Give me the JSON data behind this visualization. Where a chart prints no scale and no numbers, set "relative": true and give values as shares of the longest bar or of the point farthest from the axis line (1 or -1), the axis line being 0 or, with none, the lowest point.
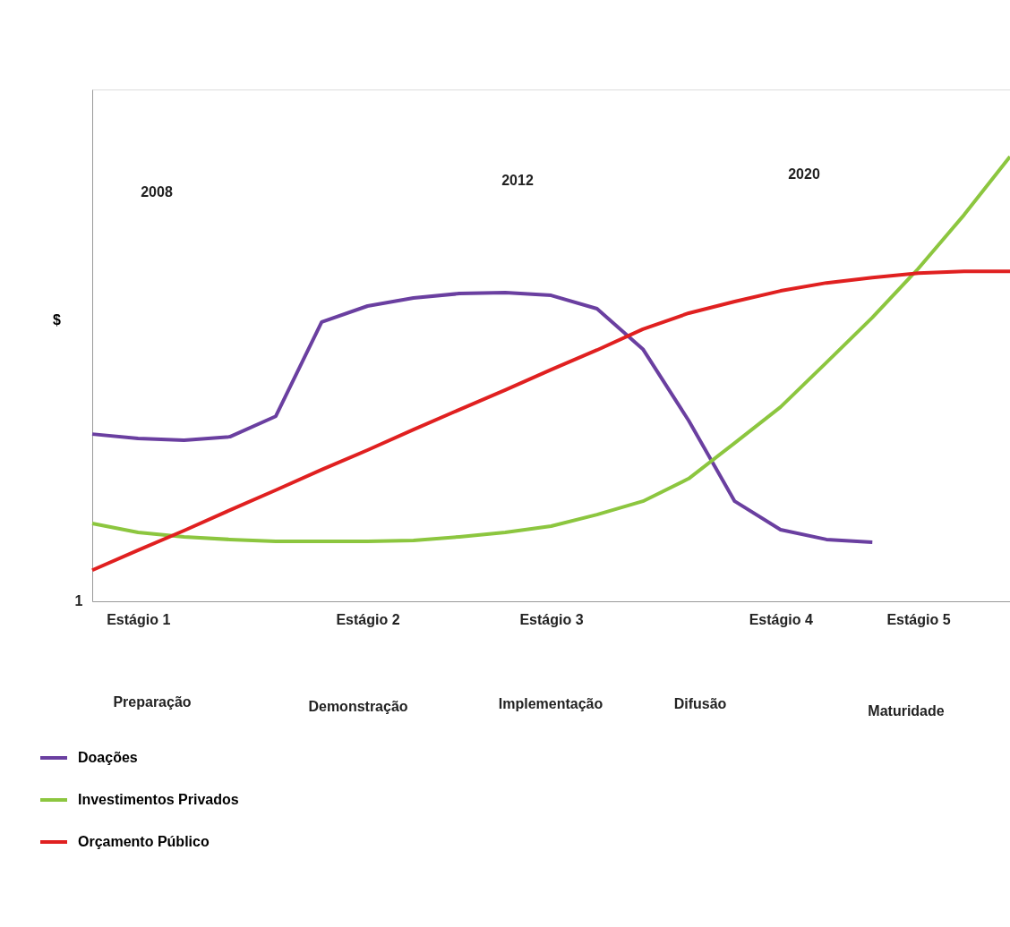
{
  "chart_data": {
    "type": "line",
    "relative": true,
    "ylabel": "$",
    "categories": [
      null,
      "Estágio 1",
      null,
      null,
      null,
      null,
      "Estágio 2",
      null,
      null,
      null,
      "Estágio 3",
      null,
      null,
      null,
      null,
      "Estágio 4",
      null,
      null,
      "Estágio 5",
      null,
      null
    ],
    "series": [
      {
        "name": "Doações",
        "color": "#6a3fa0",
        "values": [
          0.376,
          0.366,
          0.362,
          0.37,
          0.416,
          0.628,
          0.664,
          0.682,
          0.692,
          0.694,
          0.688,
          0.658,
          0.567,
          0.406,
          0.225,
          0.161,
          0.139,
          0.133,
          null,
          null,
          null
        ]
      },
      {
        "name": "Investimentos Privados",
        "color": "#8cc63f",
        "values": [
          0.175,
          0.155,
          0.145,
          0.139,
          0.135,
          0.135,
          0.135,
          0.137,
          0.145,
          0.155,
          0.169,
          0.195,
          0.225,
          0.276,
          0.356,
          0.437,
          0.537,
          0.638,
          0.748,
          0.869,
          1
        ]
      },
      {
        "name": "Orçamento Público",
        "color": "#e02020",
        "values": [
          0.07,
          0.115,
          0.159,
          0.205,
          0.25,
          0.296,
          0.34,
          0.386,
          0.431,
          0.475,
          0.521,
          0.565,
          0.612,
          0.648,
          0.674,
          0.698,
          0.716,
          0.728,
          0.738,
          0.742,
          0.742
        ]
      }
    ],
    "annotations": [
      "2008",
      "2012",
      "2020",
      "Preparação",
      "Demonstração",
      "Implementação",
      "Difusão",
      "Maturidade",
      "1"
    ],
    "legend": "bottom left",
    "grid": false,
    "line_style": "solid",
    "marker": "none"
  }
}
